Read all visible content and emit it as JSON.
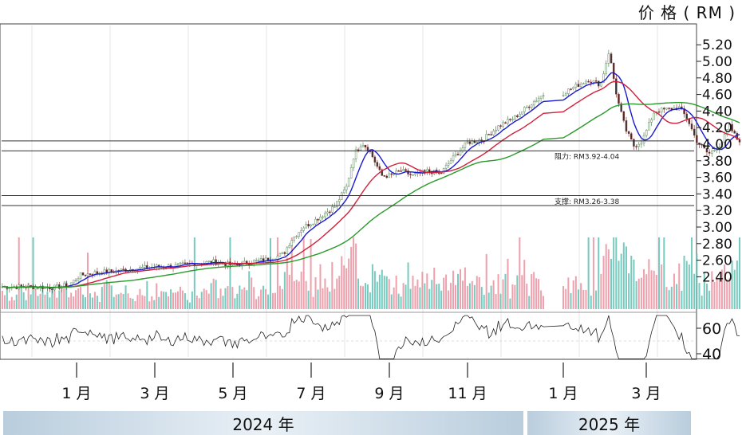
{
  "unit_label": "价 格 ( RM )",
  "years": [
    "2024 年",
    "2025 年"
  ],
  "colors": {
    "ma_short": "#1a1ad0",
    "ma_mid": "#d0203a",
    "ma_long": "#2a9a2a",
    "vol_up": "#e88090",
    "vol_down": "#4ab8a8",
    "hline": "#333333"
  },
  "chart_data": {
    "type": "line",
    "title": "",
    "price_axis": {
      "ylim": [
        2.2,
        5.35
      ],
      "ticks": [
        "5.20",
        "5.00",
        "4.80",
        "4.60",
        "4.40",
        "4.20",
        "4.00",
        "3.80",
        "3.60",
        "3.40",
        "3.20",
        "3.00",
        "2.80",
        "2.60",
        "2.40"
      ]
    },
    "indicator_axis": {
      "ticks": [
        "60",
        "40"
      ]
    },
    "x_tick_labels": [
      "1 月",
      "3 月",
      "5 月",
      "7 月",
      "9 月",
      "11 月",
      "1 月",
      "3 月"
    ],
    "annotations": [
      {
        "text": "阻力: RM3.92-4.04",
        "low": 3.92,
        "high": 4.04
      },
      {
        "text": "支撑: RM3.26-3.38",
        "low": 3.26,
        "high": 3.38
      }
    ],
    "price_path": [
      {
        "m": -1.8,
        "p": 2.28
      },
      {
        "m": -1.2,
        "p": 2.28
      },
      {
        "m": -0.6,
        "p": 2.27
      },
      {
        "m": -0.2,
        "p": 2.3
      },
      {
        "m": 0.1,
        "p": 2.42
      },
      {
        "m": 0.5,
        "p": 2.45
      },
      {
        "m": 1.0,
        "p": 2.47
      },
      {
        "m": 1.5,
        "p": 2.5
      },
      {
        "m": 2.0,
        "p": 2.52
      },
      {
        "m": 2.5,
        "p": 2.53
      },
      {
        "m": 3.0,
        "p": 2.56
      },
      {
        "m": 3.5,
        "p": 2.58
      },
      {
        "m": 4.0,
        "p": 2.54
      },
      {
        "m": 4.5,
        "p": 2.58
      },
      {
        "m": 5.0,
        "p": 2.62
      },
      {
        "m": 5.3,
        "p": 2.68
      },
      {
        "m": 5.5,
        "p": 2.85
      },
      {
        "m": 5.8,
        "p": 3.0
      },
      {
        "m": 6.0,
        "p": 3.05
      },
      {
        "m": 6.3,
        "p": 3.15
      },
      {
        "m": 6.6,
        "p": 3.25
      },
      {
        "m": 6.9,
        "p": 3.48
      },
      {
        "m": 7.1,
        "p": 3.88
      },
      {
        "m": 7.3,
        "p": 4.02
      },
      {
        "m": 7.5,
        "p": 3.92
      },
      {
        "m": 7.8,
        "p": 3.62
      },
      {
        "m": 8.0,
        "p": 3.62
      },
      {
        "m": 8.3,
        "p": 3.68
      },
      {
        "m": 8.6,
        "p": 3.62
      },
      {
        "m": 9.0,
        "p": 3.68
      },
      {
        "m": 9.3,
        "p": 3.64
      },
      {
        "m": 9.6,
        "p": 3.82
      },
      {
        "m": 10.0,
        "p": 4.02
      },
      {
        "m": 10.4,
        "p": 4.06
      },
      {
        "m": 10.8,
        "p": 4.22
      },
      {
        "m": 11.2,
        "p": 4.32
      },
      {
        "m": 11.6,
        "p": 4.48
      },
      {
        "m": 12.0,
        "p": 4.62
      },
      {
        "m": 12.3,
        "p": 4.7
      },
      {
        "m": 12.6,
        "p": 4.78
      },
      {
        "m": 12.9,
        "p": 4.72
      },
      {
        "m": 13.1,
        "p": 5.12
      },
      {
        "m": 13.3,
        "p": 4.55
      },
      {
        "m": 13.5,
        "p": 4.18
      },
      {
        "m": 13.7,
        "p": 3.98
      },
      {
        "m": 13.9,
        "p": 4.04
      },
      {
        "m": 14.2,
        "p": 4.4
      },
      {
        "m": 14.5,
        "p": 4.42
      },
      {
        "m": 14.8,
        "p": 4.44
      },
      {
        "m": 15.0,
        "p": 4.3
      },
      {
        "m": 15.2,
        "p": 4.05
      },
      {
        "m": 15.5,
        "p": 3.88
      },
      {
        "m": 15.8,
        "p": 4.0
      },
      {
        "m": 16.0,
        "p": 4.22
      },
      {
        "m": 16.2,
        "p": 4.05
      }
    ]
  }
}
